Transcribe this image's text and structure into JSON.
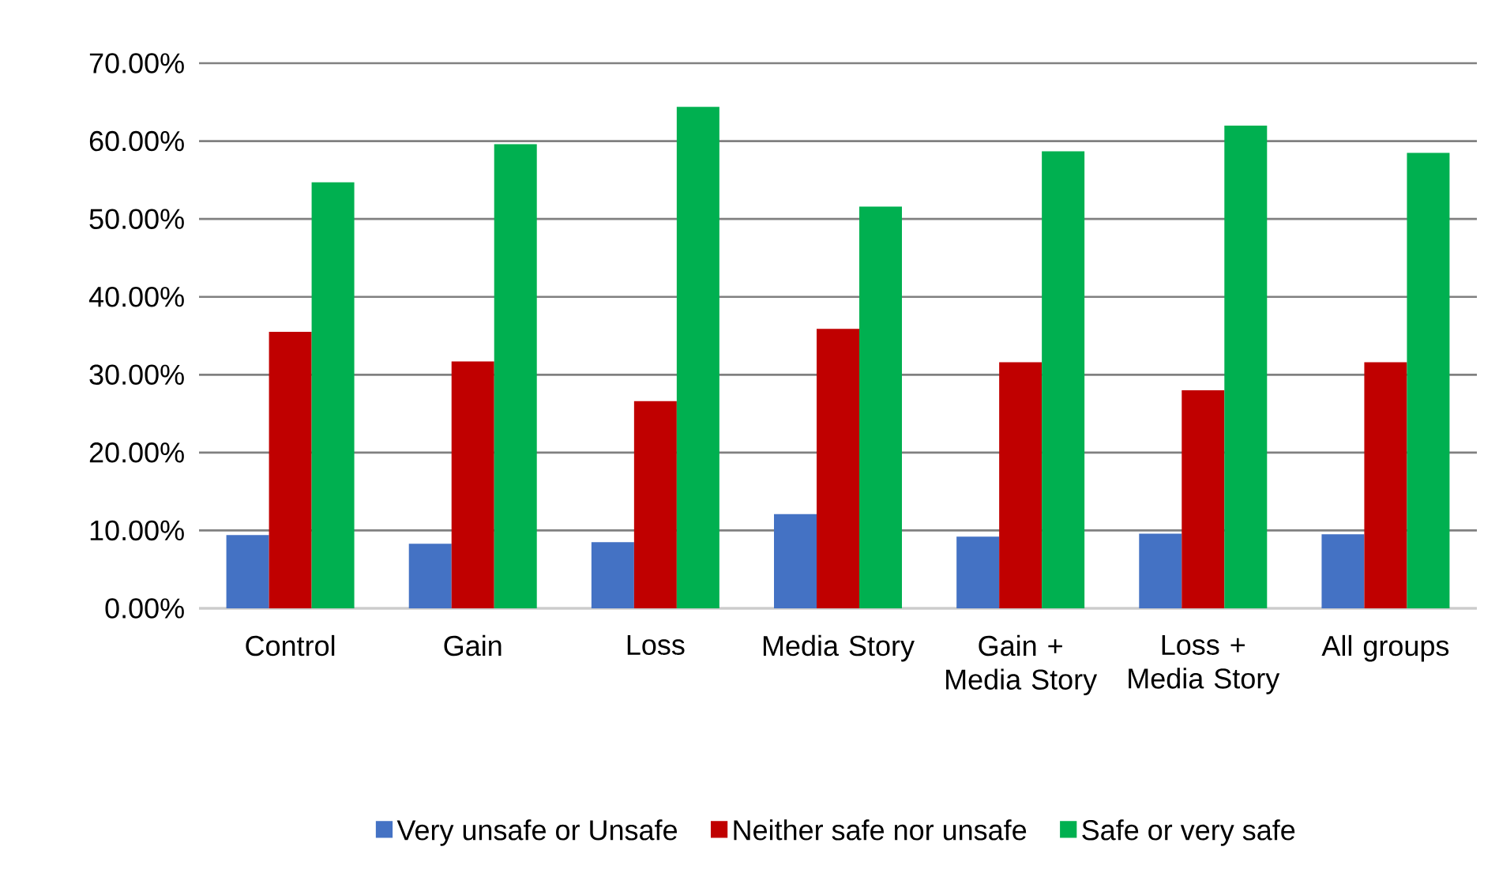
{
  "chart_data": {
    "type": "bar",
    "categories": [
      "Control",
      "Gain",
      "Loss",
      "Media Story",
      "Gain + Media Story",
      "Loss + Media Story",
      "All groups"
    ],
    "series": [
      {
        "name": "Very unsafe or Unsafe",
        "color": "#4472c4",
        "values": [
          9.4,
          8.3,
          8.5,
          12.1,
          9.2,
          9.6,
          9.5
        ]
      },
      {
        "name": "Neither safe nor unsafe",
        "color": "#c00000",
        "values": [
          35.5,
          31.7,
          26.6,
          35.9,
          31.6,
          28.0,
          31.6
        ]
      },
      {
        "name": "Safe or very safe",
        "color": "#00b050",
        "values": [
          54.7,
          59.6,
          64.4,
          51.6,
          58.7,
          62.0,
          58.5
        ]
      }
    ],
    "ylim": [
      0,
      70
    ],
    "yticks": [
      {
        "value": 0,
        "label": "0.00%"
      },
      {
        "value": 10,
        "label": "10.00%"
      },
      {
        "value": 20,
        "label": "20.00%"
      },
      {
        "value": 30,
        "label": "30.00%"
      },
      {
        "value": 40,
        "label": "40.00%"
      },
      {
        "value": 50,
        "label": "50.00%"
      },
      {
        "value": 60,
        "label": "60.00%"
      },
      {
        "value": 70,
        "label": "70.00%"
      }
    ],
    "grid": "y",
    "legend": "bottom"
  }
}
